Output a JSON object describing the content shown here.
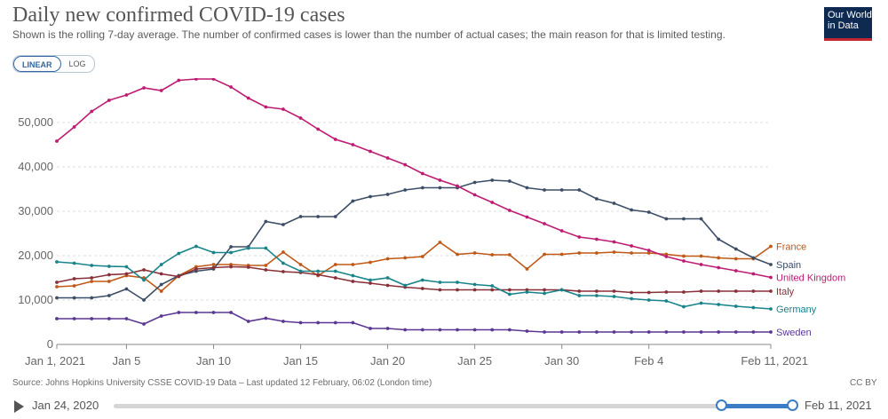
{
  "header": {
    "title": "Daily new confirmed COVID-19 cases",
    "subtitle": "Shown is the rolling 7-day average. The number of confirmed cases is lower than the number of actual cases; the main reason for that is limited testing.",
    "logo_line1": "Our World",
    "logo_line2": "in Data"
  },
  "scale_toggle": {
    "linear": "LINEAR",
    "log": "LOG",
    "selected": "linear"
  },
  "chart_data": {
    "type": "line",
    "x_dates": [
      "2021-01-01",
      "2021-01-02",
      "2021-01-03",
      "2021-01-04",
      "2021-01-05",
      "2021-01-06",
      "2021-01-07",
      "2021-01-08",
      "2021-01-09",
      "2021-01-10",
      "2021-01-11",
      "2021-01-12",
      "2021-01-13",
      "2021-01-14",
      "2021-01-15",
      "2021-01-16",
      "2021-01-17",
      "2021-01-18",
      "2021-01-19",
      "2021-01-20",
      "2021-01-21",
      "2021-01-22",
      "2021-01-23",
      "2021-01-24",
      "2021-01-25",
      "2021-01-26",
      "2021-01-27",
      "2021-01-28",
      "2021-01-29",
      "2021-01-30",
      "2021-01-31",
      "2021-02-01",
      "2021-02-02",
      "2021-02-03",
      "2021-02-04",
      "2021-02-05",
      "2021-02-06",
      "2021-02-07",
      "2021-02-08",
      "2021-02-09",
      "2021-02-10",
      "2021-02-11"
    ],
    "x_ticks": [
      "Jan 1, 2021",
      "Jan 5",
      "Jan 10",
      "Jan 15",
      "Jan 20",
      "Jan 25",
      "Jan 30",
      "Feb 4",
      "Feb 11, 2021"
    ],
    "x_tick_dates": [
      "2021-01-01",
      "2021-01-05",
      "2021-01-10",
      "2021-01-15",
      "2021-01-20",
      "2021-01-25",
      "2021-01-30",
      "2021-02-04",
      "2021-02-11"
    ],
    "y_ticks": [
      "0",
      "10,000",
      "20,000",
      "30,000",
      "40,000",
      "50,000"
    ],
    "y_tick_values": [
      0,
      10000,
      20000,
      30000,
      40000,
      50000
    ],
    "ylim": [
      0,
      60000
    ],
    "grid": "horizontal dashed",
    "legend": "right, line-end labels",
    "series": [
      {
        "name": "France",
        "color": "#c05917",
        "values": [
          13000,
          13200,
          14200,
          14200,
          15500,
          15000,
          12000,
          15500,
          17500,
          18000,
          18000,
          17800,
          17800,
          20800,
          18000,
          15500,
          18000,
          18000,
          18500,
          19300,
          19500,
          19800,
          23000,
          20300,
          20600,
          20200,
          20200,
          17000,
          20300,
          20300,
          20600,
          20600,
          20800,
          20600,
          20600,
          20300,
          19900,
          19900,
          19500,
          19300,
          19300,
          22100
        ]
      },
      {
        "name": "Spain",
        "color": "#3c4e66",
        "values": [
          10500,
          10500,
          10500,
          11000,
          12500,
          10000,
          13500,
          15500,
          16500,
          17000,
          22000,
          22000,
          27700,
          27000,
          28800,
          28800,
          28800,
          32300,
          33300,
          33800,
          34800,
          35300,
          35300,
          35300,
          36500,
          37000,
          36800,
          35300,
          34800,
          34800,
          34800,
          32800,
          31800,
          30300,
          29800,
          28300,
          28300,
          28300,
          23700,
          21500,
          19500,
          18000
        ]
      },
      {
        "name": "United Kingdom",
        "color": "#be1c72",
        "values": [
          45800,
          49000,
          52500,
          55000,
          56200,
          57800,
          57200,
          59500,
          59800,
          59800,
          58000,
          55500,
          53500,
          53000,
          51000,
          48500,
          46200,
          45000,
          43500,
          42000,
          40500,
          38500,
          37000,
          35700,
          33700,
          32000,
          30200,
          28700,
          27200,
          25600,
          24200,
          23700,
          23100,
          22200,
          21200,
          19800,
          18800,
          18000,
          17300,
          16600,
          15900,
          15100
        ]
      },
      {
        "name": "Italy",
        "color": "#883039",
        "values": [
          14000,
          14800,
          15000,
          15700,
          15900,
          16800,
          15900,
          15300,
          17000,
          17300,
          17500,
          17400,
          16800,
          16400,
          16200,
          15700,
          15000,
          14200,
          13800,
          13300,
          12900,
          12600,
          12300,
          12300,
          12300,
          12300,
          12300,
          12300,
          12300,
          12300,
          12000,
          12000,
          12000,
          11700,
          11700,
          11800,
          11800,
          12000,
          12000,
          12000,
          12000,
          12000
        ]
      },
      {
        "name": "Germany",
        "color": "#18848a",
        "values": [
          18600,
          18300,
          17800,
          17600,
          17500,
          14500,
          18000,
          20500,
          22100,
          20700,
          20700,
          21700,
          21700,
          18300,
          16500,
          16500,
          16500,
          15500,
          14500,
          15000,
          13300,
          14500,
          14000,
          14000,
          13500,
          13200,
          11300,
          11800,
          11500,
          12300,
          11000,
          11000,
          10800,
          10300,
          10000,
          9800,
          8500,
          9300,
          9000,
          8600,
          8300,
          8000
        ]
      },
      {
        "name": "Sweden",
        "color": "#5b3793",
        "values": [
          5800,
          5800,
          5800,
          5800,
          5800,
          4600,
          6400,
          7200,
          7200,
          7200,
          7200,
          5200,
          5900,
          5200,
          4900,
          4900,
          4900,
          4900,
          3600,
          3600,
          3300,
          3300,
          3300,
          3300,
          3300,
          3300,
          3300,
          3000,
          2800,
          2800,
          2800,
          2800,
          2800,
          2800,
          2800,
          2800,
          2800,
          2800,
          2800,
          2800,
          2800,
          2800
        ]
      }
    ]
  },
  "footer": {
    "source": "Source: Johns Hopkins University CSSE COVID-19 Data – Last updated 12 February, 06:02 (London time)",
    "license": "CC BY"
  },
  "timeline": {
    "start_label": "Jan 24, 2020",
    "end_label": "Feb 11, 2021",
    "range_start_fraction": 0.895,
    "range_end_fraction": 1.0
  }
}
